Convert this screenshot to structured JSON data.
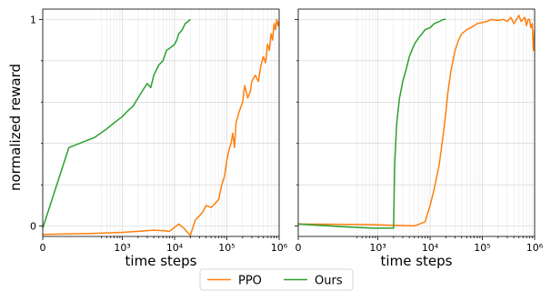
{
  "chart_data": {
    "type": "line",
    "ylabel": "normalized reward",
    "xscale": "symlog",
    "xlim": [
      0,
      1000000
    ],
    "ylim": [
      -0.05,
      1.05
    ],
    "yticks": [
      {
        "value": 0,
        "label": "0"
      },
      {
        "value": 1,
        "label": "1"
      }
    ],
    "xticks": [
      {
        "value": 0,
        "label": "0"
      },
      {
        "value": 1000,
        "label": "10³"
      },
      {
        "value": 10000,
        "label": "10⁴"
      },
      {
        "value": 100000,
        "label": "10⁵"
      },
      {
        "value": 1000000,
        "label": "10⁶"
      }
    ],
    "grid": true,
    "legend": {
      "position": "bottom-center",
      "entries": [
        "PPO",
        "Ours"
      ]
    },
    "colors": {
      "PPO": "#ff7f0e",
      "Ours": "#2ca02c"
    },
    "panels": [
      {
        "xlabel": "time steps",
        "series": [
          {
            "name": "PPO",
            "x": [
              0,
              300,
              1000,
              2000,
              4000,
              6000,
              8000,
              12000,
              15000,
              20000,
              25000,
              30000,
              35000,
              40000,
              50000,
              60000,
              70000,
              75000,
              80000,
              90000,
              100000,
              110000,
              120000,
              130000,
              140000,
              150000,
              170000,
              200000,
              220000,
              250000,
              280000,
              300000,
              350000,
              400000,
              450000,
              500000,
              550000,
              600000,
              650000,
              700000,
              750000,
              800000,
              850000,
              900000,
              950000,
              1000000
            ],
            "y": [
              -0.04,
              -0.035,
              -0.03,
              -0.025,
              -0.02,
              -0.022,
              -0.025,
              0.01,
              -0.01,
              -0.045,
              0.03,
              0.05,
              0.07,
              0.1,
              0.09,
              0.11,
              0.13,
              0.17,
              0.2,
              0.24,
              0.32,
              0.37,
              0.4,
              0.45,
              0.38,
              0.5,
              0.55,
              0.6,
              0.68,
              0.62,
              0.65,
              0.7,
              0.73,
              0.7,
              0.78,
              0.82,
              0.79,
              0.88,
              0.85,
              0.93,
              0.9,
              0.98,
              0.95,
              1.0,
              0.97,
              0.99
            ]
          },
          {
            "name": "Ours",
            "x": [
              0,
              150,
              300,
              500,
              700,
              1000,
              1300,
              1600,
              2000,
              2500,
              3000,
              3500,
              4000,
              5000,
              6000,
              7000,
              8000,
              9000,
              10000,
              11000,
              12000,
              14000,
              16000,
              18000,
              20000
            ],
            "y": [
              -0.01,
              0.38,
              0.43,
              0.47,
              0.5,
              0.53,
              0.56,
              0.58,
              0.62,
              0.66,
              0.69,
              0.67,
              0.73,
              0.78,
              0.8,
              0.85,
              0.86,
              0.87,
              0.88,
              0.9,
              0.93,
              0.95,
              0.98,
              0.99,
              1.0
            ]
          }
        ]
      },
      {
        "xlabel": "time steps",
        "series": [
          {
            "name": "PPO",
            "x": [
              0,
              500,
              1000,
              2000,
              3000,
              5000,
              8000,
              10000,
              12000,
              15000,
              18000,
              20000,
              22000,
              25000,
              30000,
              35000,
              40000,
              50000,
              60000,
              70000,
              80000,
              100000,
              120000,
              150000,
              200000,
              250000,
              300000,
              350000,
              400000,
              450000,
              500000,
              550000,
              600000,
              650000,
              700000,
              750000,
              800000,
              850000,
              900000,
              950000,
              1000000
            ],
            "y": [
              0.01,
              0.008,
              0.006,
              0.004,
              0.003,
              0.001,
              0.02,
              0.1,
              0.18,
              0.3,
              0.45,
              0.55,
              0.65,
              0.75,
              0.85,
              0.9,
              0.93,
              0.95,
              0.96,
              0.97,
              0.98,
              0.985,
              0.99,
              1.0,
              0.995,
              1.0,
              0.99,
              1.01,
              0.98,
              1.0,
              1.02,
              0.99,
              1.0,
              1.01,
              0.97,
              1.0,
              1.0,
              0.96,
              0.98,
              0.85,
              0.95
            ]
          },
          {
            "name": "Ours",
            "x": [
              0,
              300,
              800,
              1500,
              2000,
              2100,
              2300,
              2600,
              3000,
              3500,
              4000,
              5000,
              6000,
              7000,
              8000,
              10000,
              12000,
              15000,
              18000,
              20000
            ],
            "y": [
              0.01,
              -0.005,
              -0.01,
              -0.01,
              -0.01,
              0.3,
              0.5,
              0.62,
              0.7,
              0.76,
              0.82,
              0.88,
              0.91,
              0.93,
              0.95,
              0.96,
              0.98,
              0.99,
              1.0,
              1.0
            ]
          }
        ]
      }
    ]
  }
}
